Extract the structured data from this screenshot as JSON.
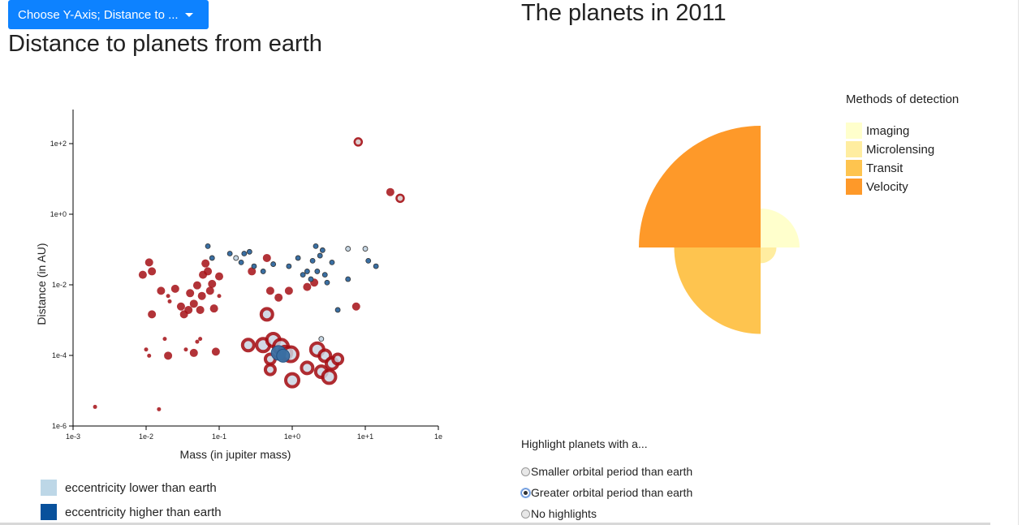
{
  "dropdown": {
    "label": "Choose Y-Axis; Distance to ..."
  },
  "left_title": "Distance to planets from earth",
  "right_title": "The planets in 2011",
  "scatter_legend": [
    {
      "label": "eccentricity lower than earth",
      "color": "#bdd7e7"
    },
    {
      "label": "eccentricity higher than earth",
      "color": "#08519c"
    }
  ],
  "pie_legend": {
    "title": "Methods of detection",
    "items": [
      {
        "label": "Imaging",
        "color": "#ffffcc"
      },
      {
        "label": "Microlensing",
        "color": "#ffeda0"
      },
      {
        "label": "Transit",
        "color": "#fec44f"
      },
      {
        "label": "Velocity",
        "color": "#fe9929"
      }
    ]
  },
  "highlight": {
    "heading": "Highlight planets with a...",
    "options": [
      {
        "label": "Smaller orbital period than earth",
        "checked": false
      },
      {
        "label": "Greater orbital period than earth",
        "checked": true
      },
      {
        "label": "No highlights",
        "checked": false
      }
    ]
  },
  "chart_data": [
    {
      "type": "scatter",
      "xlabel": "Mass (in jupiter mass)",
      "ylabel": "Distance (in AU)",
      "xscale": "log",
      "yscale": "log",
      "xlim": [
        0.001,
        100
      ],
      "ylim": [
        1e-06,
        1000
      ],
      "x_ticks": [
        "1e-3",
        "1e-2",
        "1e-1",
        "1e+0",
        "1e+1",
        "1e"
      ],
      "y_ticks": [
        "1e-6",
        "1e-4",
        "1e-2",
        "1e+0",
        "1e+2"
      ],
      "colors": {
        "red": "#a50f15",
        "blue": "#3a6fa3",
        "light": "#c6d6e3"
      },
      "points": [
        {
          "x": 0.002,
          "y": 3.5e-06,
          "c": "red",
          "s": "small"
        },
        {
          "x": 0.015,
          "y": 3e-06,
          "c": "red",
          "s": "small"
        },
        {
          "x": 0.01,
          "y": 0.00015,
          "c": "red",
          "s": "small"
        },
        {
          "x": 0.011,
          "y": 0.0001,
          "c": "red",
          "s": "small"
        },
        {
          "x": 0.018,
          "y": 0.0003,
          "c": "red",
          "s": "small"
        },
        {
          "x": 0.02,
          "y": 0.0001,
          "c": "red",
          "s": "med"
        },
        {
          "x": 0.035,
          "y": 0.00015,
          "c": "red",
          "s": "small"
        },
        {
          "x": 0.045,
          "y": 0.00012,
          "c": "red",
          "s": "med"
        },
        {
          "x": 0.05,
          "y": 0.00025,
          "c": "red",
          "s": "small"
        },
        {
          "x": 0.055,
          "y": 0.0003,
          "c": "red",
          "s": "small"
        },
        {
          "x": 0.09,
          "y": 0.00013,
          "c": "red",
          "s": "med"
        },
        {
          "x": 0.009,
          "y": 0.02,
          "c": "red",
          "s": "med"
        },
        {
          "x": 0.011,
          "y": 0.045,
          "c": "red",
          "s": "med"
        },
        {
          "x": 0.012,
          "y": 0.025,
          "c": "red",
          "s": "med"
        },
        {
          "x": 0.012,
          "y": 0.0015,
          "c": "red",
          "s": "med"
        },
        {
          "x": 0.016,
          "y": 0.007,
          "c": "red",
          "s": "med"
        },
        {
          "x": 0.02,
          "y": 0.005,
          "c": "red",
          "s": "small"
        },
        {
          "x": 0.021,
          "y": 0.0035,
          "c": "red",
          "s": "small"
        },
        {
          "x": 0.025,
          "y": 0.008,
          "c": "red",
          "s": "med"
        },
        {
          "x": 0.03,
          "y": 0.0025,
          "c": "red",
          "s": "med"
        },
        {
          "x": 0.033,
          "y": 0.0015,
          "c": "red",
          "s": "med"
        },
        {
          "x": 0.038,
          "y": 0.002,
          "c": "red",
          "s": "med"
        },
        {
          "x": 0.04,
          "y": 0.006,
          "c": "red",
          "s": "med"
        },
        {
          "x": 0.045,
          "y": 0.003,
          "c": "red",
          "s": "med"
        },
        {
          "x": 0.05,
          "y": 0.01,
          "c": "red",
          "s": "med"
        },
        {
          "x": 0.055,
          "y": 0.002,
          "c": "red",
          "s": "med"
        },
        {
          "x": 0.058,
          "y": 0.005,
          "c": "red",
          "s": "med"
        },
        {
          "x": 0.06,
          "y": 0.02,
          "c": "red",
          "s": "med"
        },
        {
          "x": 0.065,
          "y": 0.042,
          "c": "red",
          "s": "med"
        },
        {
          "x": 0.07,
          "y": 0.025,
          "c": "red",
          "s": "med"
        },
        {
          "x": 0.075,
          "y": 0.007,
          "c": "red",
          "s": "med"
        },
        {
          "x": 0.08,
          "y": 0.011,
          "c": "red",
          "s": "med"
        },
        {
          "x": 0.085,
          "y": 0.0022,
          "c": "red",
          "s": "med"
        },
        {
          "x": 0.1,
          "y": 0.005,
          "c": "red",
          "s": "small"
        },
        {
          "x": 0.1,
          "y": 0.018,
          "c": "red",
          "s": "med"
        },
        {
          "x": 0.28,
          "y": 0.025,
          "c": "red",
          "s": "med"
        },
        {
          "x": 0.45,
          "y": 0.06,
          "c": "red",
          "s": "med"
        },
        {
          "x": 0.5,
          "y": 0.007,
          "c": "red",
          "s": "med"
        },
        {
          "x": 0.9,
          "y": 0.007,
          "c": "red",
          "s": "med"
        },
        {
          "x": 0.65,
          "y": 0.0045,
          "c": "red",
          "s": "med"
        },
        {
          "x": 1.6,
          "y": 0.009,
          "c": "red",
          "s": "med"
        },
        {
          "x": 2.0,
          "y": 0.012,
          "c": "red",
          "s": "med"
        },
        {
          "x": 7.5,
          "y": 0.0025,
          "c": "red",
          "s": "med"
        },
        {
          "x": 8.0,
          "y": 120,
          "c": "red",
          "s": "medring"
        },
        {
          "x": 22,
          "y": 4.5,
          "c": "red",
          "s": "med"
        },
        {
          "x": 30,
          "y": 3.0,
          "c": "red",
          "s": "medring"
        },
        {
          "x": 0.45,
          "y": 0.0015,
          "c": "red",
          "s": "ring",
          "r": 7
        },
        {
          "x": 0.25,
          "y": 0.0002,
          "c": "red",
          "s": "ring",
          "r": 7
        },
        {
          "x": 0.4,
          "y": 0.0002,
          "c": "red",
          "s": "ring",
          "r": 8
        },
        {
          "x": 0.55,
          "y": 0.00028,
          "c": "red",
          "s": "ring",
          "r": 8
        },
        {
          "x": 0.7,
          "y": 0.00018,
          "c": "red",
          "s": "ring",
          "r": 9
        },
        {
          "x": 0.8,
          "y": 0.00012,
          "c": "red",
          "s": "ring",
          "r": 8
        },
        {
          "x": 0.95,
          "y": 0.00011,
          "c": "red",
          "s": "ring",
          "r": 9
        },
        {
          "x": 0.5,
          "y": 8e-05,
          "c": "red",
          "s": "ring",
          "r": 6
        },
        {
          "x": 0.5,
          "y": 4e-05,
          "c": "red",
          "s": "ring",
          "r": 6
        },
        {
          "x": 1.0,
          "y": 2e-05,
          "c": "red",
          "s": "ring",
          "r": 8
        },
        {
          "x": 1.6,
          "y": 4.5e-05,
          "c": "red",
          "s": "ring",
          "r": 7
        },
        {
          "x": 2.2,
          "y": 0.00015,
          "c": "red",
          "s": "ring",
          "r": 8
        },
        {
          "x": 2.8,
          "y": 0.0001,
          "c": "red",
          "s": "ring",
          "r": 7
        },
        {
          "x": 3.5,
          "y": 6e-05,
          "c": "red",
          "s": "ring",
          "r": 7
        },
        {
          "x": 2.5,
          "y": 3.5e-05,
          "c": "red",
          "s": "ring",
          "r": 7
        },
        {
          "x": 3.2,
          "y": 2.5e-05,
          "c": "red",
          "s": "ring",
          "r": 8
        },
        {
          "x": 4.2,
          "y": 8e-05,
          "c": "red",
          "s": "ring",
          "r": 6
        },
        {
          "x": 0.65,
          "y": 0.00012,
          "c": "blue",
          "s": "big",
          "r": 9
        },
        {
          "x": 0.75,
          "y": 0.0001,
          "c": "blue",
          "s": "big",
          "r": 8
        },
        {
          "x": 0.07,
          "y": 0.13,
          "c": "blue",
          "s": "small"
        },
        {
          "x": 0.08,
          "y": 0.06,
          "c": "blue",
          "s": "small"
        },
        {
          "x": 0.14,
          "y": 0.08,
          "c": "blue",
          "s": "small"
        },
        {
          "x": 0.17,
          "y": 0.06,
          "c": "light",
          "s": "small"
        },
        {
          "x": 0.22,
          "y": 0.08,
          "c": "blue",
          "s": "small"
        },
        {
          "x": 0.26,
          "y": 0.09,
          "c": "blue",
          "s": "small"
        },
        {
          "x": 0.2,
          "y": 0.045,
          "c": "blue",
          "s": "small"
        },
        {
          "x": 0.3,
          "y": 0.035,
          "c": "blue",
          "s": "small"
        },
        {
          "x": 0.4,
          "y": 0.025,
          "c": "blue",
          "s": "small"
        },
        {
          "x": 0.55,
          "y": 0.04,
          "c": "blue",
          "s": "small"
        },
        {
          "x": 0.9,
          "y": 0.035,
          "c": "blue",
          "s": "small"
        },
        {
          "x": 1.2,
          "y": 0.06,
          "c": "blue",
          "s": "small"
        },
        {
          "x": 1.4,
          "y": 0.02,
          "c": "blue",
          "s": "small"
        },
        {
          "x": 1.6,
          "y": 0.025,
          "c": "blue",
          "s": "small"
        },
        {
          "x": 1.8,
          "y": 0.015,
          "c": "blue",
          "s": "small"
        },
        {
          "x": 1.9,
          "y": 0.05,
          "c": "blue",
          "s": "small"
        },
        {
          "x": 2.1,
          "y": 0.13,
          "c": "blue",
          "s": "small"
        },
        {
          "x": 2.2,
          "y": 0.025,
          "c": "blue",
          "s": "small"
        },
        {
          "x": 2.4,
          "y": 0.07,
          "c": "blue",
          "s": "small"
        },
        {
          "x": 2.6,
          "y": 0.1,
          "c": "blue",
          "s": "small"
        },
        {
          "x": 2.8,
          "y": 0.02,
          "c": "blue",
          "s": "small"
        },
        {
          "x": 3.0,
          "y": 0.012,
          "c": "blue",
          "s": "small"
        },
        {
          "x": 3.5,
          "y": 0.045,
          "c": "blue",
          "s": "small"
        },
        {
          "x": 4.2,
          "y": 0.002,
          "c": "blue",
          "s": "small"
        },
        {
          "x": 5.8,
          "y": 0.015,
          "c": "blue",
          "s": "small"
        },
        {
          "x": 5.8,
          "y": 0.11,
          "c": "light",
          "s": "small"
        },
        {
          "x": 10.0,
          "y": 0.11,
          "c": "light",
          "s": "small"
        },
        {
          "x": 11.0,
          "y": 0.05,
          "c": "blue",
          "s": "small"
        },
        {
          "x": 14.0,
          "y": 0.035,
          "c": "blue",
          "s": "small"
        },
        {
          "x": 2.5,
          "y": 0.0003,
          "c": "light",
          "s": "small"
        }
      ]
    },
    {
      "type": "pie",
      "variant": "rose",
      "slices": [
        {
          "label": "Velocity",
          "start_deg": 270,
          "end_deg": 360,
          "relative_radius": 1.0
        },
        {
          "label": "Imaging",
          "start_deg": 0,
          "end_deg": 90,
          "relative_radius": 0.32
        },
        {
          "label": "Microlensing",
          "start_deg": 90,
          "end_deg": 180,
          "relative_radius": 0.13
        },
        {
          "label": "Transit",
          "start_deg": 180,
          "end_deg": 270,
          "relative_radius": 0.71
        }
      ]
    }
  ]
}
